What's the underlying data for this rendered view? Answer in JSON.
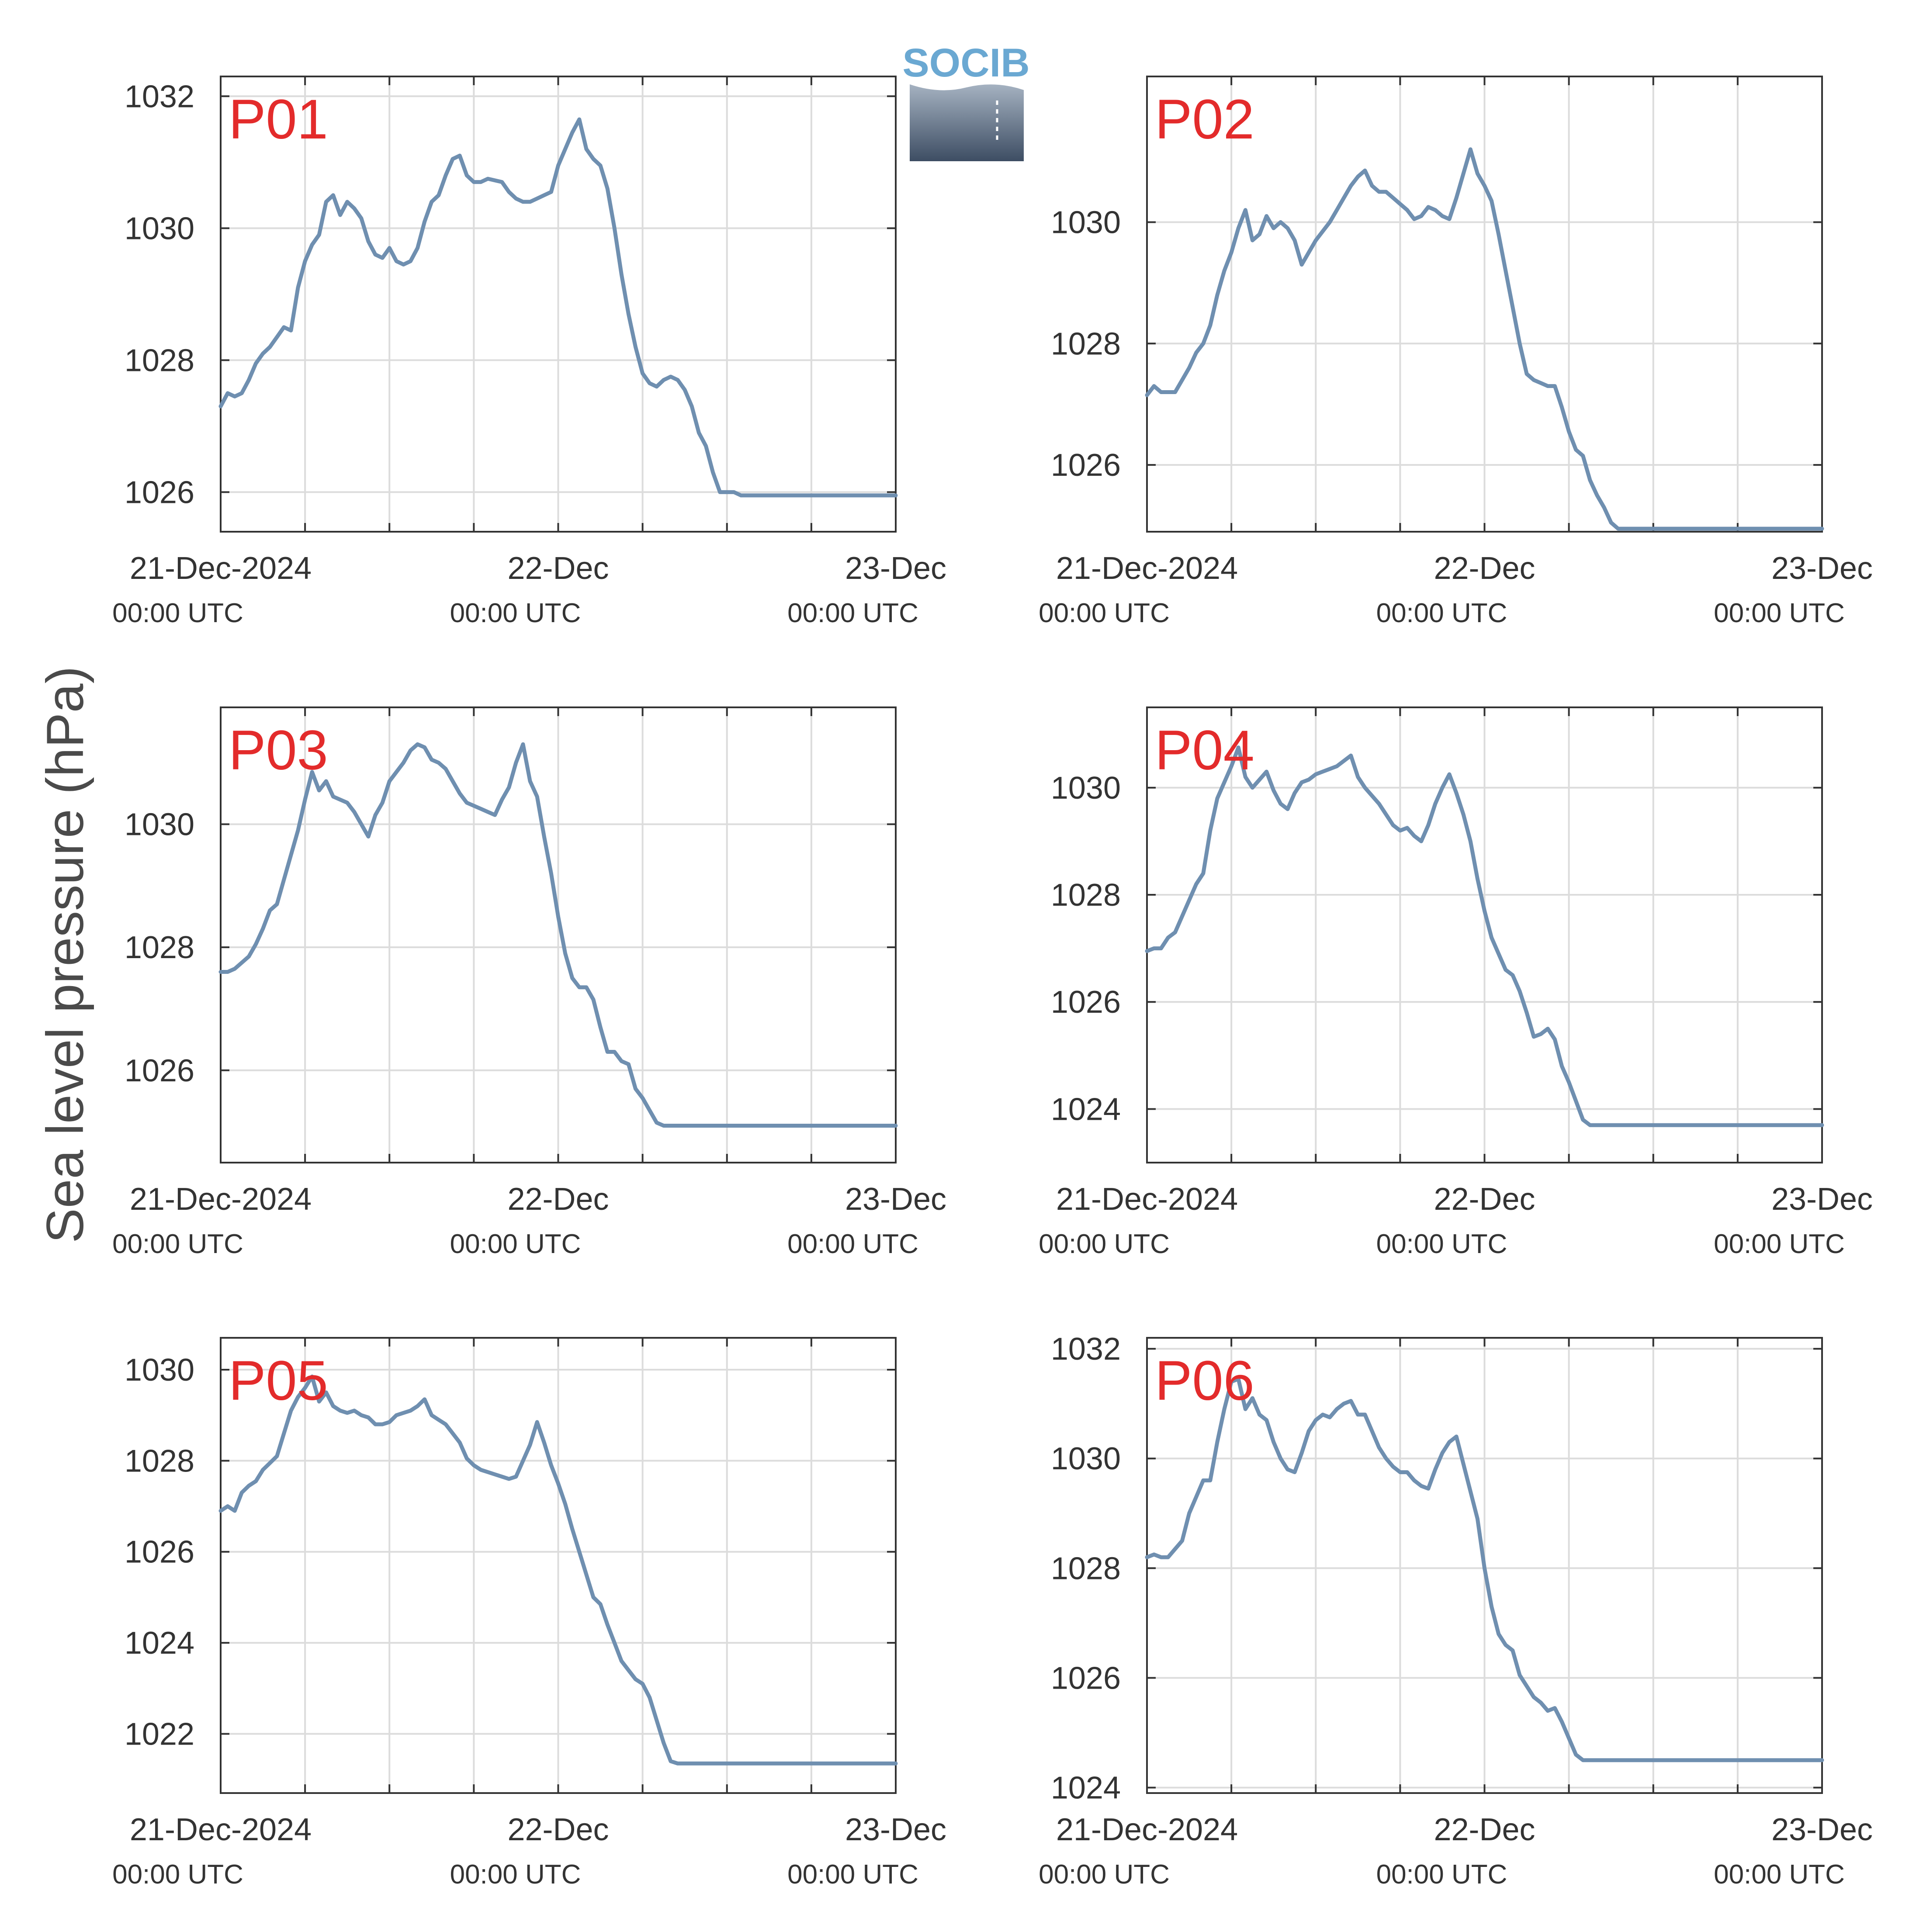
{
  "logo": {
    "text": "SOCIB"
  },
  "ylabel": "Sea level pressure (hPa)",
  "tag_color": "#e32b2b",
  "line_color": "#6f8fb0",
  "x_ticks": [
    {
      "date": "21-Dec-2024",
      "time": "00:00 UTC"
    },
    {
      "date": "22-Dec",
      "time": "00:00 UTC"
    },
    {
      "date": "23-Dec",
      "time": "00:00 UTC"
    }
  ],
  "chart_data": [
    {
      "type": "line",
      "name": "P01",
      "x_unit": "hours since 21-Dec-2024 00:00 UTC",
      "xlim": [
        0,
        48
      ],
      "ylim": [
        1025.4,
        1032.3
      ],
      "yticks": [
        1026,
        1028,
        1030,
        1032
      ],
      "grid": true,
      "x": [
        0,
        0.5,
        1,
        1.5,
        2,
        2.5,
        3,
        3.5,
        4,
        4.5,
        5,
        5.5,
        6,
        6.5,
        7,
        7.5,
        8,
        8.5,
        9,
        9.5,
        10,
        10.5,
        11,
        11.5,
        12,
        12.5,
        13,
        13.5,
        14,
        14.5,
        15,
        15.5,
        16,
        16.5,
        17,
        17.5,
        18,
        18.5,
        19,
        20,
        20.5,
        21,
        21.5,
        22,
        22.5,
        23,
        23.5,
        24,
        24.5,
        25,
        25.5,
        26,
        26.5,
        27,
        27.5,
        28,
        28.5,
        29,
        29.5,
        30,
        30.5,
        31,
        31.5,
        32,
        32.5,
        33,
        33.5,
        34,
        34.5,
        35,
        35.5,
        36,
        36.5,
        37,
        37.5,
        38,
        38.5,
        39,
        39.5,
        40,
        40.5,
        41,
        41.5,
        42,
        42.5,
        43,
        43.5,
        44,
        44.5,
        45,
        45.5,
        46,
        46.5,
        47,
        47.5,
        48
      ],
      "y": [
        1027.3,
        1027.5,
        1027.45,
        1027.5,
        1027.7,
        1027.95,
        1028.1,
        1028.2,
        1028.35,
        1028.5,
        1028.45,
        1029.1,
        1029.5,
        1029.75,
        1029.9,
        1030.4,
        1030.5,
        1030.2,
        1030.4,
        1030.3,
        1030.15,
        1029.8,
        1029.6,
        1029.55,
        1029.7,
        1029.5,
        1029.45,
        1029.5,
        1029.7,
        1030.1,
        1030.4,
        1030.5,
        1030.8,
        1031.05,
        1031.1,
        1030.8,
        1030.7,
        1030.7,
        1030.75,
        1030.7,
        1030.55,
        1030.45,
        1030.4,
        1030.4,
        1030.45,
        1030.5,
        1030.55,
        1030.95,
        1031.2,
        1031.45,
        1031.65,
        1031.2,
        1031.05,
        1030.95,
        1030.6,
        1030.0,
        1029.3,
        1028.7,
        1028.2,
        1027.8,
        1027.65,
        1027.6,
        1027.7,
        1027.75,
        1027.7,
        1027.55,
        1027.3,
        1026.9,
        1026.7,
        1026.3,
        1026.0,
        1026.0,
        1026.0,
        1025.95,
        1025.95,
        1025.95,
        1025.95,
        1025.95,
        1025.95,
        1025.95,
        1025.95,
        1025.95,
        1025.95,
        1025.95,
        1025.95,
        1025.95,
        1025.95,
        1025.95,
        1025.95,
        1025.95,
        1025.95,
        1025.95,
        1025.95,
        1025.95,
        1025.95,
        1025.95
      ]
    },
    {
      "type": "line",
      "name": "P02",
      "x_unit": "hours since 21-Dec-2024 00:00 UTC",
      "xlim": [
        0,
        48
      ],
      "ylim": [
        1024.9,
        1032.4
      ],
      "yticks": [
        1026,
        1028,
        1030
      ],
      "grid": true,
      "x": [
        0,
        0.5,
        1,
        1.5,
        2,
        2.5,
        3,
        3.5,
        4,
        4.5,
        5,
        5.5,
        6,
        6.5,
        7,
        7.5,
        8,
        8.5,
        9,
        9.5,
        10,
        10.5,
        11,
        11.5,
        12,
        12.5,
        13,
        13.5,
        14,
        14.5,
        15,
        15.5,
        16,
        16.5,
        17,
        17.5,
        18,
        18.5,
        19,
        19.5,
        20,
        20.5,
        21,
        21.5,
        22,
        22.5,
        23,
        23.5,
        24,
        24.5,
        25,
        25.5,
        26,
        26.5,
        27,
        27.5,
        28,
        28.5,
        29,
        29.5,
        30,
        30.5,
        31,
        31.5,
        32,
        32.5,
        33,
        33.5,
        34,
        34.5,
        35,
        35.5,
        36,
        36.5,
        37,
        37.5,
        38,
        38.5,
        39,
        39.5,
        40,
        40.5,
        41,
        41.5,
        42,
        42.5,
        43,
        43.5,
        44,
        44.5,
        45,
        45.5,
        46,
        46.5,
        47,
        47.5,
        48
      ],
      "y": [
        1027.15,
        1027.3,
        1027.2,
        1027.2,
        1027.2,
        1027.4,
        1027.6,
        1027.85,
        1028.0,
        1028.3,
        1028.8,
        1029.2,
        1029.5,
        1029.9,
        1030.2,
        1029.7,
        1029.8,
        1030.1,
        1029.9,
        1030.0,
        1029.9,
        1029.7,
        1029.3,
        1029.5,
        1029.7,
        1029.85,
        1030.0,
        1030.2,
        1030.4,
        1030.6,
        1030.75,
        1030.85,
        1030.6,
        1030.5,
        1030.5,
        1030.4,
        1030.3,
        1030.2,
        1030.05,
        1030.1,
        1030.25,
        1030.2,
        1030.1,
        1030.05,
        1030.4,
        1030.8,
        1031.2,
        1030.8,
        1030.6,
        1030.35,
        1029.8,
        1029.2,
        1028.6,
        1028.0,
        1027.5,
        1027.4,
        1027.35,
        1027.3,
        1027.3,
        1026.95,
        1026.55,
        1026.25,
        1026.15,
        1025.75,
        1025.5,
        1025.3,
        1025.05,
        1024.95,
        1024.95,
        1024.95,
        1024.95,
        1024.95,
        1024.95,
        1024.95,
        1024.95,
        1024.95,
        1024.95,
        1024.95,
        1024.95,
        1024.95,
        1024.95,
        1024.95,
        1024.95,
        1024.95,
        1024.95,
        1024.95,
        1024.95,
        1024.95,
        1024.95,
        1024.95,
        1024.95,
        1024.95,
        1024.95,
        1024.95,
        1024.95,
        1024.95,
        1024.95
      ]
    },
    {
      "type": "line",
      "name": "P03",
      "x_unit": "hours since 21-Dec-2024 00:00 UTC",
      "xlim": [
        0,
        48
      ],
      "ylim": [
        1024.5,
        1031.9
      ],
      "yticks": [
        1026,
        1028,
        1030
      ],
      "grid": true,
      "x": [
        0,
        0.5,
        1,
        1.5,
        2,
        2.5,
        3,
        3.5,
        4,
        4.5,
        5,
        5.5,
        6,
        6.5,
        7,
        7.5,
        8,
        8.5,
        9,
        9.5,
        10,
        10.5,
        11,
        11.5,
        12,
        12.5,
        13,
        13.5,
        14,
        14.5,
        15,
        15.5,
        16,
        16.5,
        17,
        17.5,
        18,
        18.5,
        19,
        19.5,
        20,
        20.5,
        21,
        21.5,
        22,
        22.5,
        23,
        23.5,
        24,
        24.5,
        25,
        25.5,
        26,
        26.5,
        27,
        27.5,
        28,
        28.5,
        29,
        29.5,
        30,
        30.5,
        31,
        31.5,
        32,
        32.5,
        33,
        33.5,
        34,
        34.5,
        35,
        35.5,
        36,
        36.5,
        37,
        37.5,
        38,
        38.5,
        39,
        39.5,
        40,
        40.5,
        41,
        41.5,
        42,
        42.5,
        43,
        43.5,
        44,
        44.5,
        45,
        45.5,
        46,
        46.5,
        47,
        47.5,
        48
      ],
      "y": [
        1027.6,
        1027.6,
        1027.65,
        1027.75,
        1027.85,
        1028.05,
        1028.3,
        1028.6,
        1028.7,
        1029.1,
        1029.5,
        1029.9,
        1030.4,
        1030.85,
        1030.55,
        1030.7,
        1030.45,
        1030.4,
        1030.35,
        1030.2,
        1030.0,
        1029.8,
        1030.15,
        1030.35,
        1030.7,
        1030.85,
        1031.0,
        1031.2,
        1031.3,
        1031.25,
        1031.05,
        1031.0,
        1030.9,
        1030.7,
        1030.5,
        1030.35,
        1030.3,
        1030.25,
        1030.2,
        1030.15,
        1030.4,
        1030.6,
        1031.0,
        1031.3,
        1030.7,
        1030.45,
        1029.8,
        1029.2,
        1028.5,
        1027.9,
        1027.5,
        1027.35,
        1027.35,
        1027.15,
        1026.7,
        1026.3,
        1026.3,
        1026.15,
        1026.1,
        1025.7,
        1025.55,
        1025.35,
        1025.15,
        1025.1,
        1025.1,
        1025.1,
        1025.1,
        1025.1,
        1025.1,
        1025.1,
        1025.1,
        1025.1,
        1025.1,
        1025.1,
        1025.1,
        1025.1,
        1025.1,
        1025.1,
        1025.1,
        1025.1,
        1025.1,
        1025.1,
        1025.1,
        1025.1,
        1025.1,
        1025.1,
        1025.1,
        1025.1,
        1025.1,
        1025.1,
        1025.1,
        1025.1,
        1025.1,
        1025.1,
        1025.1,
        1025.1,
        1025.1
      ]
    },
    {
      "type": "line",
      "name": "P04",
      "x_unit": "hours since 21-Dec-2024 00:00 UTC",
      "xlim": [
        0,
        48
      ],
      "ylim": [
        1023.0,
        1031.5
      ],
      "yticks": [
        1024,
        1026,
        1028,
        1030
      ],
      "grid": true,
      "x": [
        0,
        0.5,
        1,
        1.5,
        2,
        2.5,
        3,
        3.5,
        4,
        4.5,
        5,
        5.5,
        6,
        6.5,
        7,
        7.5,
        8,
        8.5,
        9,
        9.5,
        10,
        10.5,
        11,
        11.5,
        12,
        12.5,
        13,
        13.5,
        14,
        14.5,
        15,
        15.5,
        16,
        16.5,
        17,
        17.5,
        18,
        18.5,
        19,
        19.5,
        20,
        20.5,
        21,
        21.5,
        22,
        22.5,
        23,
        23.5,
        24,
        24.5,
        25,
        25.5,
        26,
        26.5,
        27,
        27.5,
        28,
        28.5,
        29,
        29.5,
        30,
        30.5,
        31,
        31.5,
        32,
        32.5,
        33,
        33.5,
        34,
        34.5,
        35,
        35.5,
        36,
        36.5,
        37,
        37.5,
        38,
        38.5,
        39,
        39.5,
        40,
        40.5,
        41,
        41.5,
        42,
        42.5,
        43,
        43.5,
        44,
        44.5,
        45,
        45.5,
        46,
        46.5,
        47,
        47.5,
        48
      ],
      "y": [
        1026.95,
        1027.0,
        1027.0,
        1027.2,
        1027.3,
        1027.6,
        1027.9,
        1028.2,
        1028.4,
        1029.2,
        1029.8,
        1030.1,
        1030.4,
        1030.75,
        1030.2,
        1030.0,
        1030.15,
        1030.3,
        1029.95,
        1029.7,
        1029.6,
        1029.9,
        1030.1,
        1030.15,
        1030.25,
        1030.3,
        1030.35,
        1030.4,
        1030.5,
        1030.6,
        1030.2,
        1030.0,
        1029.85,
        1029.7,
        1029.5,
        1029.3,
        1029.2,
        1029.25,
        1029.1,
        1029.0,
        1029.3,
        1029.7,
        1030.0,
        1030.25,
        1029.9,
        1029.5,
        1029.0,
        1028.3,
        1027.7,
        1027.2,
        1026.9,
        1026.6,
        1026.5,
        1026.2,
        1025.8,
        1025.35,
        1025.4,
        1025.5,
        1025.3,
        1024.8,
        1024.5,
        1024.15,
        1023.8,
        1023.7,
        1023.7,
        1023.7,
        1023.7,
        1023.7,
        1023.7,
        1023.7,
        1023.7,
        1023.7,
        1023.7,
        1023.7,
        1023.7,
        1023.7,
        1023.7,
        1023.7,
        1023.7,
        1023.7,
        1023.7,
        1023.7,
        1023.7,
        1023.7,
        1023.7,
        1023.7,
        1023.7,
        1023.7,
        1023.7,
        1023.7,
        1023.7,
        1023.7,
        1023.7,
        1023.7,
        1023.7,
        1023.7,
        1023.7
      ]
    },
    {
      "type": "line",
      "name": "P05",
      "x_unit": "hours since 21-Dec-2024 00:00 UTC",
      "xlim": [
        0,
        48
      ],
      "ylim": [
        1020.7,
        1030.7
      ],
      "yticks": [
        1022,
        1024,
        1026,
        1028,
        1030
      ],
      "grid": true,
      "x": [
        0,
        0.5,
        1,
        1.5,
        2,
        2.5,
        3,
        3.5,
        4,
        4.5,
        5,
        5.5,
        6,
        6.5,
        7,
        7.5,
        8,
        8.5,
        9,
        9.5,
        10,
        10.5,
        11,
        11.5,
        12,
        12.5,
        13,
        13.5,
        14,
        14.5,
        15,
        15.5,
        16,
        16.5,
        17,
        17.5,
        18,
        18.5,
        19,
        19.5,
        20,
        20.5,
        21,
        21.5,
        22,
        22.5,
        23,
        23.5,
        24,
        24.5,
        25,
        25.5,
        26,
        26.5,
        27,
        27.5,
        28,
        28.5,
        29,
        29.5,
        30,
        30.5,
        31,
        31.5,
        32,
        32.5,
        33,
        33.5,
        34,
        34.5,
        35,
        35.5,
        36,
        36.5,
        37,
        37.5,
        38,
        38.5,
        39,
        39.5,
        40,
        40.5,
        41,
        41.5,
        42,
        42.5,
        43,
        43.5,
        44,
        44.5,
        45,
        45.5,
        46,
        46.5,
        47,
        47.5,
        48
      ],
      "y": [
        1026.9,
        1027.0,
        1026.9,
        1027.3,
        1027.45,
        1027.55,
        1027.8,
        1027.95,
        1028.1,
        1028.6,
        1029.1,
        1029.4,
        1029.6,
        1029.85,
        1029.3,
        1029.5,
        1029.2,
        1029.1,
        1029.05,
        1029.1,
        1029.0,
        1028.95,
        1028.8,
        1028.8,
        1028.85,
        1029.0,
        1029.05,
        1029.1,
        1029.2,
        1029.35,
        1029.0,
        1028.9,
        1028.8,
        1028.6,
        1028.4,
        1028.05,
        1027.9,
        1027.8,
        1027.75,
        1027.7,
        1027.65,
        1027.6,
        1027.65,
        1028.0,
        1028.35,
        1028.85,
        1028.4,
        1027.9,
        1027.5,
        1027.05,
        1026.5,
        1026.0,
        1025.5,
        1025.0,
        1024.85,
        1024.4,
        1024.0,
        1023.6,
        1023.4,
        1023.2,
        1023.1,
        1022.8,
        1022.3,
        1021.8,
        1021.4,
        1021.35,
        1021.35,
        1021.35,
        1021.35,
        1021.35,
        1021.35,
        1021.35,
        1021.35,
        1021.35,
        1021.35,
        1021.35,
        1021.35,
        1021.35,
        1021.35,
        1021.35,
        1021.35,
        1021.35,
        1021.35,
        1021.35,
        1021.35,
        1021.35,
        1021.35,
        1021.35,
        1021.35,
        1021.35,
        1021.35,
        1021.35,
        1021.35,
        1021.35,
        1021.35,
        1021.35,
        1021.35
      ]
    },
    {
      "type": "line",
      "name": "P06",
      "x_unit": "hours since 21-Dec-2024 00:00 UTC",
      "xlim": [
        0,
        48
      ],
      "ylim": [
        1023.9,
        1032.2
      ],
      "yticks": [
        1024,
        1026,
        1028,
        1030,
        1032
      ],
      "grid": true,
      "x": [
        0,
        0.5,
        1,
        1.5,
        2,
        2.5,
        3,
        3.5,
        4,
        4.5,
        5,
        5.5,
        6,
        6.5,
        7,
        7.5,
        8,
        8.5,
        9,
        9.5,
        10,
        10.5,
        11,
        11.5,
        12,
        12.5,
        13,
        13.5,
        14,
        14.5,
        15,
        15.5,
        16,
        16.5,
        17,
        17.5,
        18,
        18.5,
        19,
        19.5,
        20,
        20.5,
        21,
        21.5,
        22,
        22.5,
        23,
        23.5,
        24,
        24.5,
        25,
        25.5,
        26,
        26.5,
        27,
        27.5,
        28,
        28.5,
        29,
        29.5,
        30,
        30.5,
        31,
        31.5,
        32,
        32.5,
        33,
        33.5,
        34,
        34.5,
        35,
        35.5,
        36,
        36.5,
        37,
        37.5,
        38,
        38.5,
        39,
        39.5,
        40,
        40.5,
        41,
        41.5,
        42,
        42.5,
        43,
        43.5,
        44,
        44.5,
        45,
        45.5,
        46,
        46.5,
        47,
        47.5,
        48
      ],
      "y": [
        1028.2,
        1028.25,
        1028.2,
        1028.2,
        1028.35,
        1028.5,
        1029.0,
        1029.3,
        1029.6,
        1029.6,
        1030.3,
        1030.9,
        1031.4,
        1031.45,
        1030.9,
        1031.1,
        1030.8,
        1030.7,
        1030.3,
        1030.0,
        1029.8,
        1029.75,
        1030.1,
        1030.5,
        1030.7,
        1030.8,
        1030.75,
        1030.9,
        1031.0,
        1031.05,
        1030.8,
        1030.8,
        1030.5,
        1030.2,
        1030.0,
        1029.85,
        1029.75,
        1029.75,
        1029.6,
        1029.5,
        1029.45,
        1029.8,
        1030.1,
        1030.3,
        1030.4,
        1029.9,
        1029.4,
        1028.9,
        1028.0,
        1027.3,
        1026.8,
        1026.6,
        1026.5,
        1026.05,
        1025.85,
        1025.65,
        1025.55,
        1025.4,
        1025.45,
        1025.2,
        1024.9,
        1024.6,
        1024.5,
        1024.5,
        1024.5,
        1024.5,
        1024.5,
        1024.5,
        1024.5,
        1024.5,
        1024.5,
        1024.5,
        1024.5,
        1024.5,
        1024.5,
        1024.5,
        1024.5,
        1024.5,
        1024.5,
        1024.5,
        1024.5,
        1024.5,
        1024.5,
        1024.5,
        1024.5,
        1024.5,
        1024.5,
        1024.5,
        1024.5,
        1024.5,
        1024.5,
        1024.5,
        1024.5,
        1024.5,
        1024.5,
        1024.5,
        1024.5
      ]
    }
  ]
}
